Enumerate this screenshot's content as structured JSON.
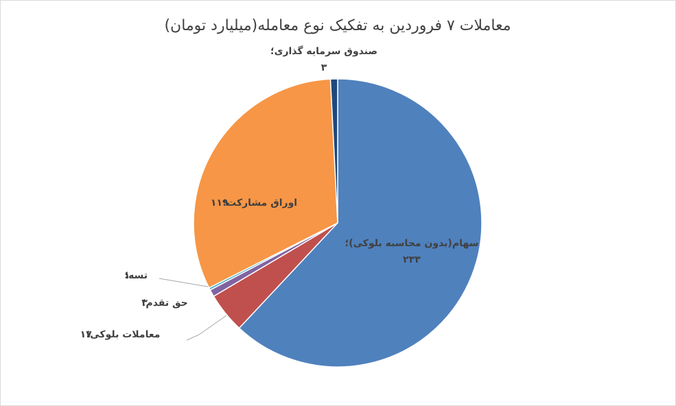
{
  "chart_data": {
    "type": "pie",
    "title": "معاملات ۷ فروردین به تفکیک نوع معامله(میلیارد تومان)",
    "categories": [
      "سهام(بدون محاسبه بلوکی)؛",
      "معاملات بلوکی؛",
      "حق تقدم؛",
      "تسه؛",
      "اوراق مشارکت؛",
      "صندوق سرمایه گذاری؛"
    ],
    "values": [
      233,
      17,
      3,
      1,
      119,
      3
    ],
    "value_labels": [
      "۲۳۳",
      "۱۷",
      "۳",
      "۱",
      "۱۱۹",
      "۳"
    ],
    "colors": [
      "#4f81bd",
      "#c0504d",
      "#8064a2",
      "#4bacc6",
      "#f79646",
      "#1f497d"
    ]
  }
}
